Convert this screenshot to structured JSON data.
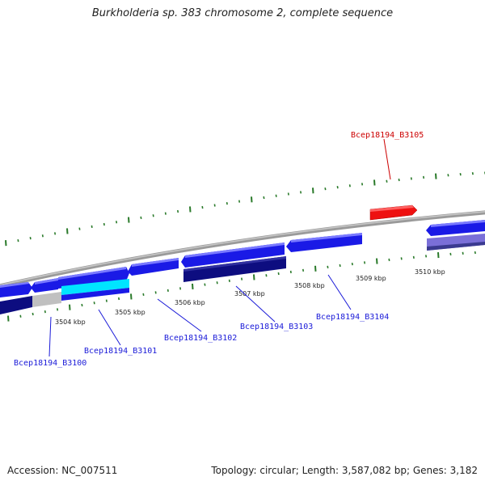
{
  "title": "Burkholderia sp. 383 chromosome 2, complete sequence",
  "footer": {
    "accession": "Accession: NC_007511",
    "summary": "Topology: circular; Length: 3,587,082 bp; Genes: 3,182"
  },
  "colors": {
    "forward_gene": "#1a1ae6",
    "reverse_gene": "#0d0d80",
    "highlight_forward": "#ff1010",
    "highlight_light": "#00e5ff",
    "grey_gene": "#c0c0c0",
    "lavender_gene": "#7a6fd8",
    "backbone": "#808080",
    "tick": "#2a7a2a",
    "label_blue": "#1a1ad8",
    "label_red": "#cc0000"
  },
  "scale_labels": [
    "3504 kbp",
    "3505 kbp",
    "3506 kbp",
    "3507 kbp",
    "3508 kbp",
    "3509 kbp",
    "3510 kbp"
  ],
  "gene_labels": [
    {
      "text": "Bcep18194_B3100",
      "color": "label_blue"
    },
    {
      "text": "Bcep18194_B3101",
      "color": "label_blue"
    },
    {
      "text": "Bcep18194_B3102",
      "color": "label_blue"
    },
    {
      "text": "Bcep18194_B3103",
      "color": "label_blue"
    },
    {
      "text": "Bcep18194_B3104",
      "color": "label_blue"
    },
    {
      "text": "Bcep18194_B3105",
      "color": "label_red"
    }
  ]
}
